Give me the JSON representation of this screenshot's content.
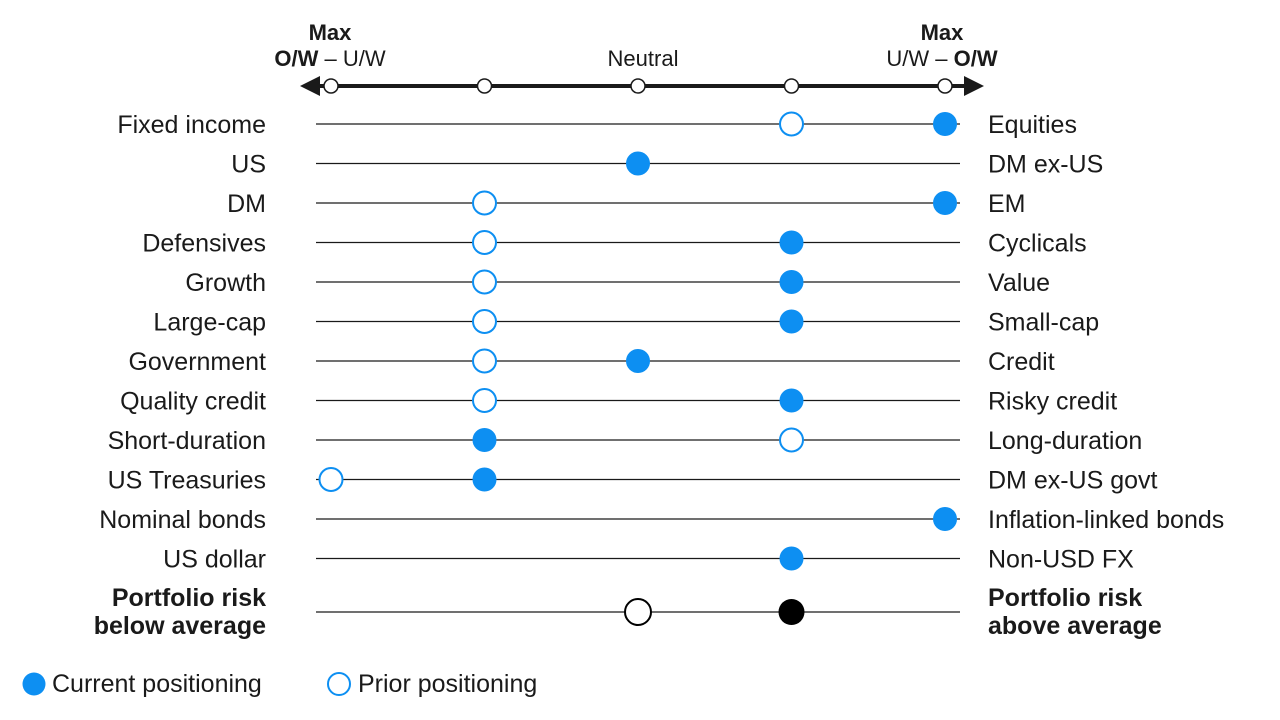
{
  "chart_data": {
    "type": "dot-scale",
    "scale": {
      "positions": [
        -2,
        -1,
        0,
        1,
        2
      ],
      "left_header": {
        "line1": "Max",
        "line2_bold": "O/W",
        "line2_sep": " – ",
        "line2_rest": "U/W"
      },
      "center_label": "Neutral",
      "right_header": {
        "line1": "Max",
        "line2_rest": "U/W",
        "line2_sep": " – ",
        "line2_bold": "O/W"
      }
    },
    "rows": [
      {
        "left": "Fixed income",
        "right": "Equities",
        "current": 2,
        "prior": 1
      },
      {
        "left": "US",
        "right": "DM ex-US",
        "current": 0,
        "prior": null
      },
      {
        "left": "DM",
        "right": "EM",
        "current": 2,
        "prior": -1
      },
      {
        "left": "Defensives",
        "right": "Cyclicals",
        "current": 1,
        "prior": -1
      },
      {
        "left": "Growth",
        "right": "Value",
        "current": 1,
        "prior": -1
      },
      {
        "left": "Large-cap",
        "right": "Small-cap",
        "current": 1,
        "prior": -1
      },
      {
        "left": "Government",
        "right": "Credit",
        "current": 0,
        "prior": -1
      },
      {
        "left": "Quality credit",
        "right": "Risky credit",
        "current": 1,
        "prior": -1
      },
      {
        "left": "Short-duration",
        "right": "Long-duration",
        "current": -1,
        "prior": 1
      },
      {
        "left": "US Treasuries",
        "right": "DM ex-US govt",
        "current": -1,
        "prior": -2
      },
      {
        "left": "Nominal bonds",
        "right": "Inflation-linked bonds",
        "current": 2,
        "prior": null
      },
      {
        "left": "US dollar",
        "right": "Non-USD FX",
        "current": 1,
        "prior": null
      }
    ],
    "risk_row": {
      "left_lines": [
        "Portfolio risk",
        "below average"
      ],
      "right_lines": [
        "Portfolio risk",
        "above average"
      ],
      "current": 1,
      "prior": 0
    },
    "legend": {
      "current": "Current positioning",
      "prior": "Prior positioning"
    },
    "colors": {
      "current": "#0d8ff2",
      "prior_stroke": "#0d8ff2",
      "risk_current": "#000000",
      "risk_prior_stroke": "#000000",
      "line": "#1a1a1a"
    }
  }
}
